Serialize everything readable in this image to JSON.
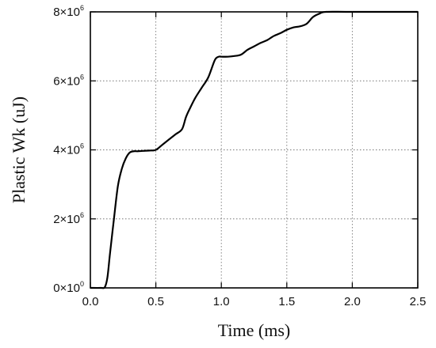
{
  "chart_data": {
    "type": "line",
    "xlabel": "Time (ms)",
    "ylabel": "Plastic Wk (uJ)",
    "xlim": [
      0,
      2.5
    ],
    "ylim": [
      0,
      8000000
    ],
    "grid": true,
    "x_ticks": [
      {
        "value": 0.0,
        "label": "0.0"
      },
      {
        "value": 0.5,
        "label": "0.5"
      },
      {
        "value": 1.0,
        "label": "1.0"
      },
      {
        "value": 1.5,
        "label": "1.5"
      },
      {
        "value": 2.0,
        "label": "2.0"
      },
      {
        "value": 2.5,
        "label": "2.5"
      }
    ],
    "y_ticks": [
      {
        "value": 0,
        "mantissa": "0×10",
        "exponent": "0"
      },
      {
        "value": 2000000,
        "mantissa": "2×10",
        "exponent": "6"
      },
      {
        "value": 4000000,
        "mantissa": "4×10",
        "exponent": "6"
      },
      {
        "value": 6000000,
        "mantissa": "6×10",
        "exponent": "6"
      },
      {
        "value": 8000000,
        "mantissa": "8×10",
        "exponent": "6"
      }
    ],
    "series": [
      {
        "color": "#000000",
        "x": [
          0.0,
          0.08,
          0.11,
          0.13,
          0.15,
          0.18,
          0.21,
          0.24,
          0.27,
          0.3,
          0.33,
          0.36,
          0.4,
          0.45,
          0.5,
          0.55,
          0.6,
          0.65,
          0.7,
          0.73,
          0.76,
          0.8,
          0.85,
          0.9,
          0.95,
          0.98,
          1.0,
          1.05,
          1.1,
          1.15,
          1.2,
          1.25,
          1.3,
          1.35,
          1.4,
          1.45,
          1.5,
          1.55,
          1.6,
          1.65,
          1.7,
          1.75,
          1.8,
          2.0,
          2.5
        ],
        "y": [
          0,
          0,
          20000,
          300000,
          1000000,
          2000000,
          2950000,
          3450000,
          3750000,
          3920000,
          3960000,
          3960000,
          3970000,
          3980000,
          4000000,
          4150000,
          4300000,
          4450000,
          4600000,
          4950000,
          5200000,
          5500000,
          5800000,
          6100000,
          6600000,
          6700000,
          6700000,
          6700000,
          6720000,
          6760000,
          6900000,
          7000000,
          7100000,
          7180000,
          7300000,
          7380000,
          7480000,
          7550000,
          7580000,
          7650000,
          7850000,
          7950000,
          8000000,
          8000000,
          8000000
        ]
      }
    ]
  }
}
